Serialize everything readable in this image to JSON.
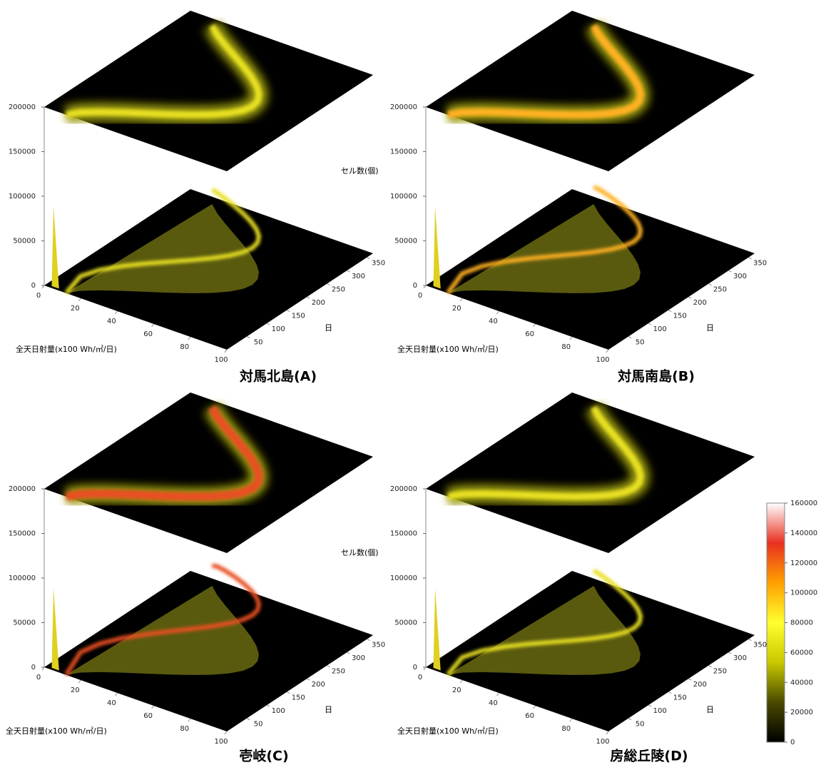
{
  "chart_data": [
    {
      "type": "surface3d",
      "title": "対馬北島(A)",
      "xlabel": "全天日射量(x100 Wh/㎡/日)",
      "ylabel": "日",
      "xlim": [
        0,
        100
      ],
      "xticks": [
        0,
        20,
        40,
        60,
        80,
        100
      ],
      "ylim": [
        0,
        365
      ],
      "yticks": [
        50,
        100,
        150,
        200,
        250,
        300,
        350
      ],
      "zlim": [
        0,
        200000
      ],
      "zticks": [
        0,
        50000,
        100000,
        150000,
        200000
      ]
    },
    {
      "type": "surface3d",
      "title": "対馬南島(B)",
      "xlabel": "全天日射量(x100 Wh/㎡/日)",
      "ylabel": "日",
      "zlabel": "セル数(個)",
      "xlim": [
        0,
        100
      ],
      "xticks": [
        0,
        20,
        40,
        60,
        80,
        100
      ],
      "ylim": [
        0,
        365
      ],
      "yticks": [
        50,
        100,
        150,
        200,
        250,
        300,
        350
      ],
      "zlim": [
        0,
        200000
      ],
      "zticks": [
        0,
        50000,
        100000,
        150000,
        200000
      ]
    },
    {
      "type": "surface3d",
      "title": "壱岐(C)",
      "xlabel": "全天日射量(x100 Wh/㎡/日)",
      "ylabel": "日",
      "xlim": [
        0,
        100
      ],
      "xticks": [
        0,
        20,
        40,
        60,
        80,
        100
      ],
      "ylim": [
        0,
        365
      ],
      "yticks": [
        50,
        100,
        150,
        200,
        250,
        300,
        350
      ],
      "zlim": [
        0,
        200000
      ],
      "zticks": [
        0,
        50000,
        100000,
        150000,
        200000
      ]
    },
    {
      "type": "surface3d",
      "title": "房総丘陵(D)",
      "xlabel": "全天日射量(x100 Wh/㎡/日)",
      "ylabel": "日",
      "zlabel": "セル数(個)",
      "xlim": [
        0,
        100
      ],
      "xticks": [
        0,
        20,
        40,
        60,
        80,
        100
      ],
      "ylim": [
        0,
        365
      ],
      "yticks": [
        50,
        100,
        150,
        200,
        250,
        300,
        350
      ],
      "zlim": [
        0,
        200000
      ],
      "zticks": [
        0,
        50000,
        100000,
        150000,
        200000
      ]
    }
  ],
  "colorbar": {
    "lim": [
      0,
      160000
    ],
    "ticks": [
      0,
      20000,
      40000,
      60000,
      80000,
      100000,
      120000,
      140000,
      160000
    ],
    "colors": [
      "#000000",
      "#4a4a00",
      "#c8c800",
      "#ffff30",
      "#ffa000",
      "#e83020",
      "#ffffff"
    ]
  }
}
